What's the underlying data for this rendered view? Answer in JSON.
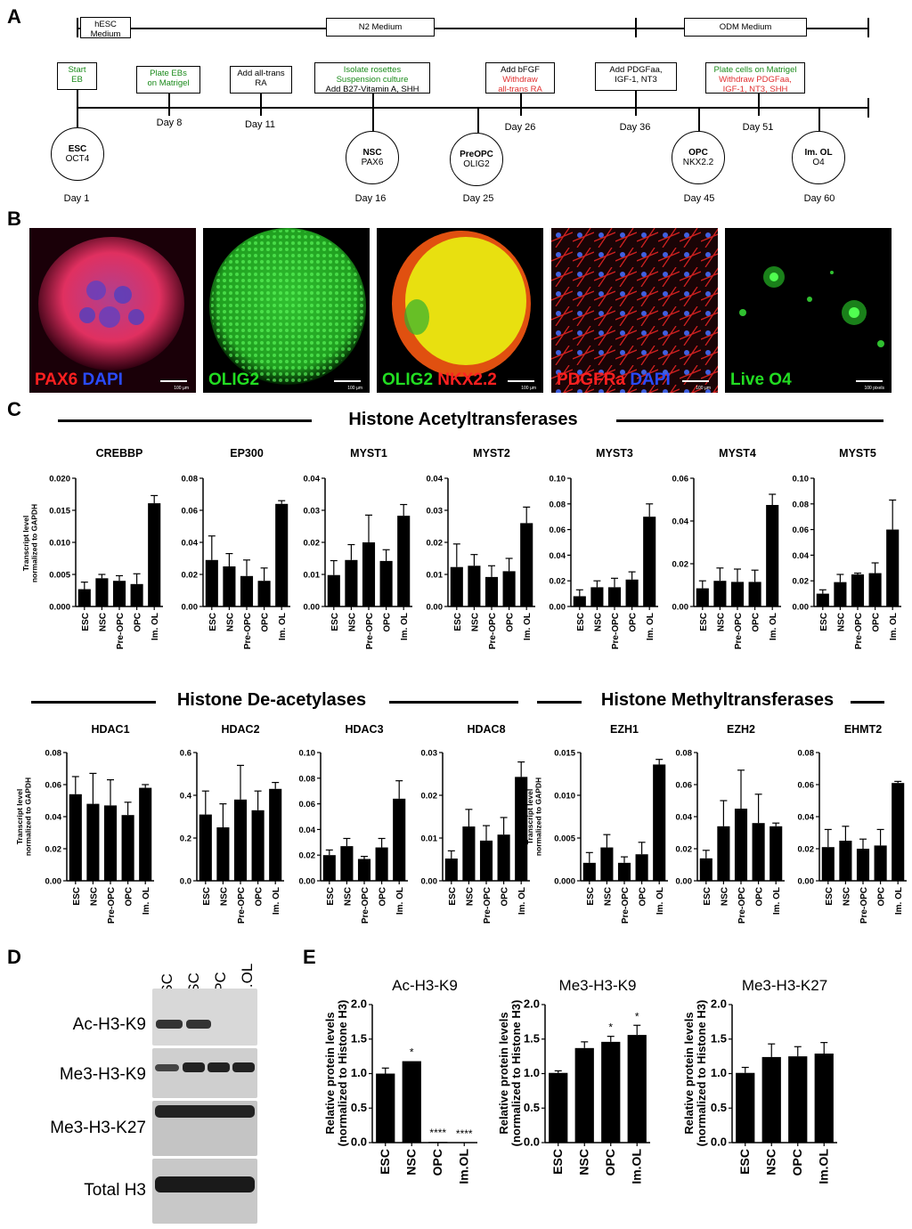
{
  "panels": {
    "A": "A",
    "B": "B",
    "C": "C",
    "D": "D",
    "E": "E"
  },
  "timeline": {
    "media": [
      "hESC Medium",
      "N2 Medium",
      "ODM Medium"
    ],
    "steps": [
      {
        "lines": [
          {
            "t": "Start",
            "c": "g"
          },
          {
            "t": "EB",
            "c": "g"
          }
        ]
      },
      {
        "lines": [
          {
            "t": "Plate EBs",
            "c": "g"
          },
          {
            "t": "on Matrigel",
            "c": "g"
          }
        ]
      },
      {
        "lines": [
          {
            "t": "Add all-trans",
            "c": "k"
          },
          {
            "t": "RA",
            "c": "k"
          }
        ]
      },
      {
        "lines": [
          {
            "t": "Isolate rosettes",
            "c": "g"
          },
          {
            "t": "Suspension culture",
            "c": "g"
          },
          {
            "t": "Add B27-Vitamin A, SHH",
            "c": "k"
          }
        ]
      },
      {
        "lines": [
          {
            "t": "Add bFGF",
            "c": "k"
          },
          {
            "t": "Withdraw",
            "c": "r"
          },
          {
            "t": "all-trans RA",
            "c": "r"
          }
        ]
      },
      {
        "lines": [
          {
            "t": "Add PDGFaa,",
            "c": "k"
          },
          {
            "t": "IGF-1, NT3",
            "c": "k"
          }
        ]
      },
      {
        "lines": [
          {
            "t": "Plate cells on Matrigel",
            "c": "g"
          },
          {
            "t": "Withdraw PDGFaa,",
            "c": "r"
          },
          {
            "t": "IGF-1, NT3, SHH",
            "c": "r"
          }
        ]
      }
    ],
    "tick_days": [
      "Day 8",
      "Day 11",
      "Day 26",
      "Day 36",
      "Day 51"
    ],
    "stages": [
      {
        "name": "ESC",
        "marker": "OCT4",
        "day": "Day 1"
      },
      {
        "name": "NSC",
        "marker": "PAX6",
        "day": "Day 16"
      },
      {
        "name": "PreOPC",
        "marker": "OLIG2",
        "day": "Day 25"
      },
      {
        "name": "OPC",
        "marker": "NKX2.2",
        "day": "Day 45"
      },
      {
        "name": "Im. OL",
        "marker": "O4",
        "day": "Day 60"
      }
    ]
  },
  "micrographs": [
    {
      "labels": [
        {
          "t": "PAX6",
          "color": "#ff2020"
        },
        {
          "t": " DAPI",
          "color": "#2a4bff"
        }
      ],
      "scale": "100 µm"
    },
    {
      "labels": [
        {
          "t": "OLIG2",
          "color": "#22dd22"
        }
      ],
      "scale": "100 µm"
    },
    {
      "labels": [
        {
          "t": "OLIG2",
          "color": "#22dd22"
        },
        {
          "t": " NKX2.2",
          "color": "#ff2020"
        }
      ],
      "scale": "100 µm"
    },
    {
      "labels": [
        {
          "t": "PDGFRa",
          "color": "#ff2020"
        },
        {
          "t": " DAPI",
          "color": "#2a4bff"
        }
      ],
      "scale": "100 µm"
    },
    {
      "labels": [
        {
          "t": "Live O4",
          "color": "#22dd22"
        }
      ],
      "scale": "100 pixels"
    }
  ],
  "sections": {
    "hat": "Histone Acetyltransferases",
    "hdac": "Histone De-acetylases",
    "hmt": "Histone Methyltransferases"
  },
  "ylabel_transcript": [
    "Transcript level",
    "normalized to GAPDH"
  ],
  "ylabel_protein": [
    "Relative protein levels",
    "(normalized to Histone H3)"
  ],
  "chart_data": [
    {
      "type": "bar",
      "title": "CREBBP",
      "categories": [
        "ESC",
        "NSC",
        "Pre-OPC",
        "OPC",
        "Im. OL"
      ],
      "values": [
        0.0027,
        0.0044,
        0.004,
        0.0035,
        0.0161
      ],
      "errors": [
        0.0011,
        0.0006,
        0.0008,
        0.0016,
        0.0012
      ],
      "ylim": [
        0,
        0.02
      ],
      "ticks": [
        "0.000",
        "0.005",
        "0.010",
        "0.015",
        "0.020"
      ],
      "tickvals": [
        0,
        0.005,
        0.01,
        0.015,
        0.02
      ]
    },
    {
      "type": "bar",
      "title": "EP300",
      "categories": [
        "ESC",
        "NSC",
        "Pre-OPC",
        "OPC",
        "Im. OL"
      ],
      "values": [
        0.029,
        0.025,
        0.019,
        0.016,
        0.064
      ],
      "errors": [
        0.015,
        0.008,
        0.01,
        0.008,
        0.002
      ],
      "ylim": [
        0,
        0.08
      ],
      "ticks": [
        "0.00",
        "0.02",
        "0.04",
        "0.06",
        "0.08"
      ],
      "tickvals": [
        0,
        0.02,
        0.04,
        0.06,
        0.08
      ]
    },
    {
      "type": "bar",
      "title": "MYST1",
      "categories": [
        "ESC",
        "NSC",
        "Pre-OPC",
        "OPC",
        "Im. OL"
      ],
      "values": [
        0.0098,
        0.0145,
        0.02,
        0.0142,
        0.0283
      ],
      "errors": [
        0.0045,
        0.0048,
        0.0085,
        0.0035,
        0.0035
      ],
      "ylim": [
        0,
        0.04
      ],
      "ticks": [
        "0.00",
        "0.01",
        "0.02",
        "0.03",
        "0.04"
      ],
      "tickvals": [
        0,
        0.01,
        0.02,
        0.03,
        0.04
      ]
    },
    {
      "type": "bar",
      "title": "MYST2",
      "categories": [
        "ESC",
        "NSC",
        "Pre-OPC",
        "OPC",
        "Im. OL"
      ],
      "values": [
        0.0123,
        0.0127,
        0.0092,
        0.011,
        0.026
      ],
      "errors": [
        0.0072,
        0.0035,
        0.0035,
        0.004,
        0.005
      ],
      "ylim": [
        0,
        0.04
      ],
      "ticks": [
        "0.00",
        "0.01",
        "0.02",
        "0.03",
        "0.04"
      ],
      "tickvals": [
        0,
        0.01,
        0.02,
        0.03,
        0.04
      ]
    },
    {
      "type": "bar",
      "title": "MYST3",
      "categories": [
        "ESC",
        "NSC",
        "Pre-OPC",
        "OPC",
        "Im. OL"
      ],
      "values": [
        0.008,
        0.015,
        0.015,
        0.021,
        0.07
      ],
      "errors": [
        0.005,
        0.005,
        0.007,
        0.006,
        0.01
      ],
      "ylim": [
        0,
        0.1
      ],
      "ticks": [
        "0.00",
        "0.02",
        "0.04",
        "0.06",
        "0.08",
        "0.10"
      ],
      "tickvals": [
        0,
        0.02,
        0.04,
        0.06,
        0.08,
        0.1
      ]
    },
    {
      "type": "bar",
      "title": "MYST4",
      "categories": [
        "ESC",
        "NSC",
        "Pre-OPC",
        "OPC",
        "Im. OL"
      ],
      "values": [
        0.0085,
        0.012,
        0.0115,
        0.0115,
        0.0475
      ],
      "errors": [
        0.0035,
        0.006,
        0.006,
        0.0055,
        0.005
      ],
      "ylim": [
        0,
        0.06
      ],
      "ticks": [
        "0.00",
        "0.02",
        "0.04",
        "0.06"
      ],
      "tickvals": [
        0,
        0.02,
        0.04,
        0.06
      ]
    },
    {
      "type": "bar",
      "title": "MYST5",
      "categories": [
        "ESC",
        "NSC",
        "Pre-OPC",
        "OPC",
        "Im. OL"
      ],
      "values": [
        0.01,
        0.019,
        0.025,
        0.026,
        0.06
      ],
      "errors": [
        0.003,
        0.006,
        0.001,
        0.008,
        0.023
      ],
      "ylim": [
        0,
        0.1
      ],
      "ticks": [
        "0.00",
        "0.02",
        "0.04",
        "0.06",
        "0.08",
        "0.10"
      ],
      "tickvals": [
        0,
        0.02,
        0.04,
        0.06,
        0.08,
        0.1
      ]
    },
    {
      "type": "bar",
      "title": "HDAC1",
      "categories": [
        "ESC",
        "NSC",
        "Pre-OPC",
        "OPC",
        "Im. OL"
      ],
      "values": [
        0.054,
        0.048,
        0.047,
        0.041,
        0.058
      ],
      "errors": [
        0.011,
        0.019,
        0.016,
        0.008,
        0.002
      ],
      "ylim": [
        0,
        0.08
      ],
      "ticks": [
        "0.00",
        "0.02",
        "0.04",
        "0.06",
        "0.08"
      ],
      "tickvals": [
        0,
        0.02,
        0.04,
        0.06,
        0.08
      ]
    },
    {
      "type": "bar",
      "title": "HDAC2",
      "categories": [
        "ESC",
        "NSC",
        "Pre-OPC",
        "OPC",
        "Im. OL"
      ],
      "values": [
        0.31,
        0.25,
        0.38,
        0.33,
        0.43
      ],
      "errors": [
        0.11,
        0.11,
        0.16,
        0.09,
        0.03
      ],
      "ylim": [
        0,
        0.6
      ],
      "ticks": [
        "0.0",
        "0.2",
        "0.4",
        "0.6"
      ],
      "tickvals": [
        0,
        0.2,
        0.4,
        0.6
      ]
    },
    {
      "type": "bar",
      "title": "HDAC3",
      "categories": [
        "ESC",
        "NSC",
        "Pre-OPC",
        "OPC",
        "Im. OL"
      ],
      "values": [
        0.02,
        0.027,
        0.017,
        0.026,
        0.064
      ],
      "errors": [
        0.004,
        0.006,
        0.002,
        0.007,
        0.014
      ],
      "ylim": [
        0,
        0.1
      ],
      "ticks": [
        "0.00",
        "0.02",
        "0.04",
        "0.06",
        "0.08",
        "0.10"
      ],
      "tickvals": [
        0,
        0.02,
        0.04,
        0.06,
        0.08,
        0.1
      ]
    },
    {
      "type": "bar",
      "title": "HDAC8",
      "categories": [
        "ESC",
        "NSC",
        "Pre-OPC",
        "OPC",
        "Im. OL"
      ],
      "values": [
        0.0052,
        0.0127,
        0.0094,
        0.0108,
        0.0243
      ],
      "errors": [
        0.0018,
        0.004,
        0.0035,
        0.004,
        0.0035
      ],
      "ylim": [
        0,
        0.03
      ],
      "ticks": [
        "0.00",
        "0.01",
        "0.02",
        "0.03"
      ],
      "tickvals": [
        0,
        0.01,
        0.02,
        0.03
      ]
    },
    {
      "type": "bar",
      "title": "EZH1",
      "categories": [
        "ESC",
        "NSC",
        "Pre-OPC",
        "OPC",
        "Im. OL"
      ],
      "values": [
        0.0021,
        0.0039,
        0.0021,
        0.0031,
        0.0136
      ],
      "errors": [
        0.0012,
        0.0015,
        0.0007,
        0.0014,
        0.0006
      ],
      "ylim": [
        0,
        0.015
      ],
      "ticks": [
        "0.000",
        "0.005",
        "0.010",
        "0.015"
      ],
      "tickvals": [
        0,
        0.005,
        0.01,
        0.015
      ]
    },
    {
      "type": "bar",
      "title": "EZH2",
      "categories": [
        "ESC",
        "NSC",
        "Pre-OPC",
        "OPC",
        "Im. OL"
      ],
      "values": [
        0.014,
        0.034,
        0.045,
        0.036,
        0.034
      ],
      "errors": [
        0.005,
        0.016,
        0.024,
        0.018,
        0.002
      ],
      "ylim": [
        0,
        0.08
      ],
      "ticks": [
        "0.00",
        "0.02",
        "0.04",
        "0.06",
        "0.08"
      ],
      "tickvals": [
        0,
        0.02,
        0.04,
        0.06,
        0.08
      ]
    },
    {
      "type": "bar",
      "title": "EHMT2",
      "categories": [
        "ESC",
        "NSC",
        "Pre-OPC",
        "OPC",
        "Im. OL"
      ],
      "values": [
        0.021,
        0.025,
        0.02,
        0.022,
        0.061
      ],
      "errors": [
        0.011,
        0.009,
        0.006,
        0.01,
        0.001
      ],
      "ylim": [
        0,
        0.08
      ],
      "ticks": [
        "0.00",
        "0.02",
        "0.04",
        "0.06",
        "0.08"
      ],
      "tickvals": [
        0,
        0.02,
        0.04,
        0.06,
        0.08
      ]
    },
    {
      "type": "bar",
      "title": "Ac-H3-K9",
      "categories": [
        "ESC",
        "NSC",
        "OPC",
        "Im.OL"
      ],
      "values": [
        1.0,
        1.18,
        0.01,
        0.0
      ],
      "errors": [
        0.08,
        0.0,
        0.0,
        0.0
      ],
      "significance": [
        "",
        "*",
        "****",
        "****"
      ],
      "ylim": [
        0,
        2.0
      ],
      "ticks": [
        "0.0",
        "0.5",
        "1.0",
        "1.5",
        "2.0"
      ],
      "tickvals": [
        0,
        0.5,
        1.0,
        1.5,
        2.0
      ]
    },
    {
      "type": "bar",
      "title": "Me3-H3-K9",
      "categories": [
        "ESC",
        "NSC",
        "OPC",
        "Im.OL"
      ],
      "values": [
        1.01,
        1.37,
        1.46,
        1.56
      ],
      "errors": [
        0.03,
        0.09,
        0.08,
        0.14
      ],
      "significance": [
        "",
        "",
        "*",
        "*"
      ],
      "ylim": [
        0,
        2.0
      ],
      "ticks": [
        "0.0",
        "0.5",
        "1.0",
        "1.5",
        "2.0"
      ],
      "tickvals": [
        0,
        0.5,
        1.0,
        1.5,
        2.0
      ]
    },
    {
      "type": "bar",
      "title": "Me3-H3-K27",
      "categories": [
        "ESC",
        "NSC",
        "OPC",
        "Im.OL"
      ],
      "values": [
        1.01,
        1.24,
        1.25,
        1.29
      ],
      "errors": [
        0.08,
        0.19,
        0.14,
        0.16
      ],
      "significance": [
        "",
        "",
        "",
        ""
      ],
      "ylim": [
        0,
        2.0
      ],
      "ticks": [
        "0.0",
        "0.5",
        "1.0",
        "1.5",
        "2.0"
      ],
      "tickvals": [
        0,
        0.5,
        1.0,
        1.5,
        2.0
      ]
    }
  ],
  "blot": {
    "lanes": [
      "ESC",
      "NSC",
      "OPC",
      "Im.OL"
    ],
    "rows": [
      "Ac-H3-K9",
      "Me3-H3-K9",
      "Me3-H3-K27",
      "Total H3"
    ]
  }
}
